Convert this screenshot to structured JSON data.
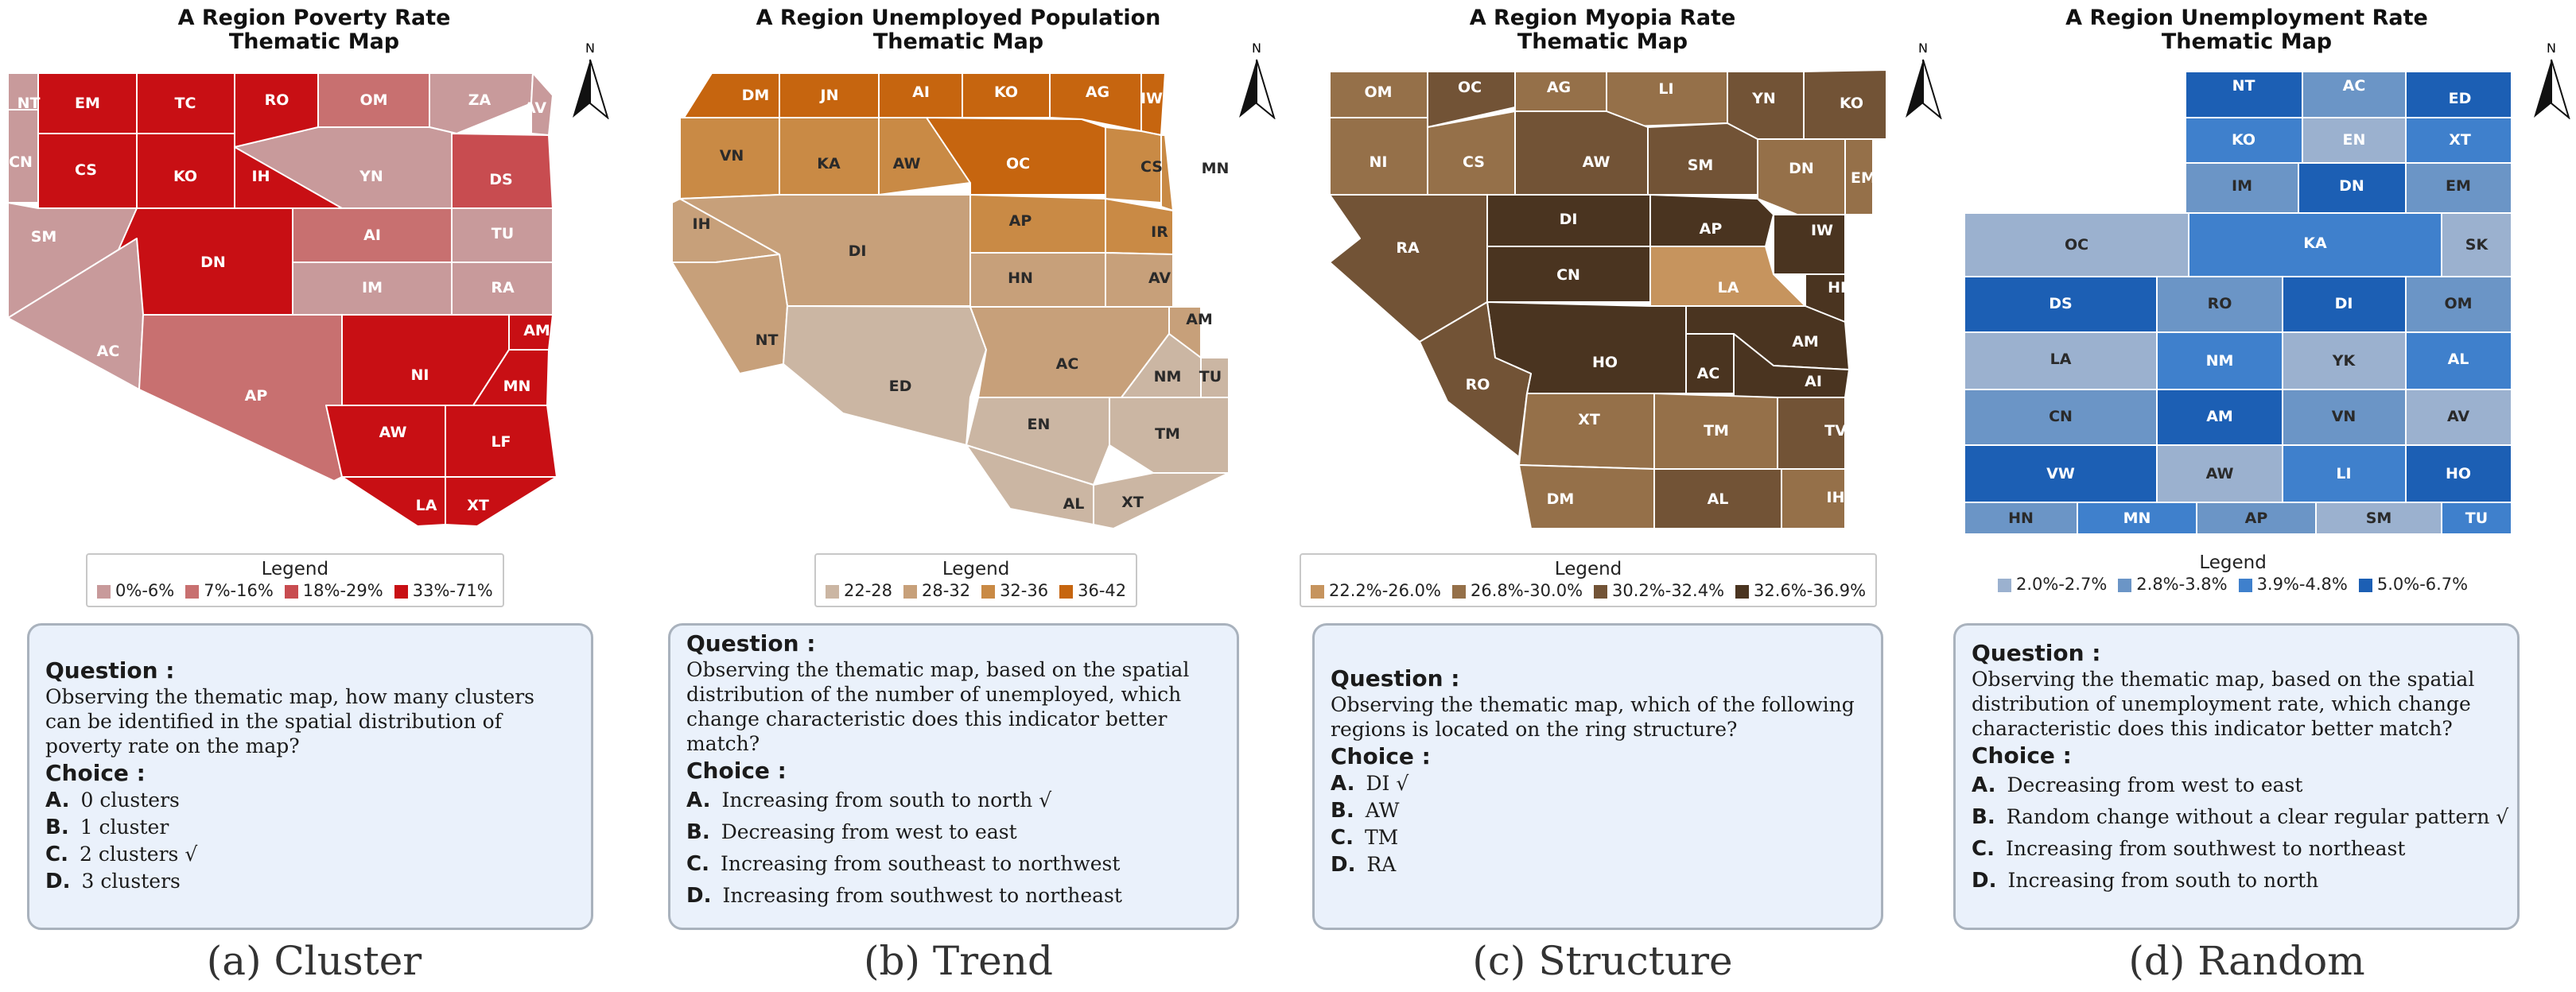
{
  "panels": [
    {
      "title_lines": [
        "A Region Poverty Rate",
        "Thematic Map"
      ],
      "legend": {
        "title": "Legend",
        "items": [
          {
            "label": "0%-6%",
            "color": "#c89a9b"
          },
          {
            "label": "7%-16%",
            "color": "#c87070"
          },
          {
            "label": "18%-29%",
            "color": "#c84c50"
          },
          {
            "label": "33%-71%",
            "color": "#c80f14"
          }
        ]
      },
      "question": {
        "heading": "Question :",
        "text": "Observing the thematic map, how many clusters can be identified in the spatial distribution of poverty rate on the map?",
        "choice_heading": "Choice :",
        "options": [
          {
            "key": "A.",
            "text": "0 clusters"
          },
          {
            "key": "B.",
            "text": "1 cluster"
          },
          {
            "key": "C.",
            "text": "2 clusters  √"
          },
          {
            "key": "D.",
            "text": "3 clusters"
          }
        ]
      },
      "caption": "(a) Cluster",
      "north": "N"
    },
    {
      "title_lines": [
        "A Region Unemployed Population",
        "Thematic Map"
      ],
      "legend": {
        "title": "Legend",
        "items": [
          {
            "label": "22-28",
            "color": "#cbb6a3"
          },
          {
            "label": "28-32",
            "color": "#c7a07a"
          },
          {
            "label": "32-36",
            "color": "#c98a45"
          },
          {
            "label": "36-42",
            "color": "#c6650f"
          }
        ]
      },
      "question": {
        "heading": "Question :",
        "text": "Observing the thematic map, based on the spatial distribution of the number of unemployed, which change characteristic does this indicator better match?",
        "choice_heading": "Choice :",
        "options": [
          {
            "key": "A.",
            "text": "Increasing from south to north  √"
          },
          {
            "key": "B.",
            "text": "Decreasing from west to east"
          },
          {
            "key": "C.",
            "text": "Increasing from southeast to northwest"
          },
          {
            "key": "D.",
            "text": "Increasing from southwest to northeast"
          }
        ]
      },
      "caption": "(b) Trend",
      "north": "N"
    },
    {
      "title_lines": [
        "A Region Myopia Rate",
        "Thematic Map"
      ],
      "legend": {
        "title": "Legend",
        "items": [
          {
            "label": "22.2%-26.0%",
            "color": "#c6945e"
          },
          {
            "label": "26.8%-30.0%",
            "color": "#957049"
          },
          {
            "label": "30.2%-32.4%",
            "color": "#725336"
          },
          {
            "label": "32.6%-36.9%",
            "color": "#4a3420"
          }
        ]
      },
      "question": {
        "heading": "Question :",
        "text": "Observing the thematic map, which of the following regions is located on the ring structure?",
        "choice_heading": "Choice :",
        "options": [
          {
            "key": "A.",
            "text": "DI  √"
          },
          {
            "key": "B.",
            "text": "AW"
          },
          {
            "key": "C.",
            "text": "TM"
          },
          {
            "key": "D.",
            "text": "RA"
          }
        ]
      },
      "caption": "(c) Structure",
      "north": "N"
    },
    {
      "title_lines": [
        "A Region Unemployment Rate",
        "Thematic Map"
      ],
      "legend": {
        "title": "Legend",
        "items": [
          {
            "label": "2.0%-2.7%",
            "color": "#9bb1cf"
          },
          {
            "label": "2.8%-3.8%",
            "color": "#6b95c6"
          },
          {
            "label": "3.9%-4.8%",
            "color": "#3f80cc"
          },
          {
            "label": "5.0%-6.7%",
            "color": "#1c5fb4"
          }
        ]
      },
      "question": {
        "heading": "Question :",
        "text": "Observing the thematic map, based on the spatial distribution of unemployment rate, which change characteristic does this indicator better match?",
        "choice_heading": "Choice :",
        "options": [
          {
            "key": "A.",
            "text": "Decreasing from west to east"
          },
          {
            "key": "B.",
            "text": "Random change without a clear regular pattern  √"
          },
          {
            "key": "C.",
            "text": "Increasing from southwest to northeast"
          },
          {
            "key": "D.",
            "text": "Increasing from south to north"
          }
        ]
      },
      "caption": "(d) Random",
      "north": "N"
    }
  ],
  "maps": {
    "a": {
      "regions": [
        {
          "label": "NT",
          "cls": 0
        },
        {
          "label": "EM",
          "cls": 3
        },
        {
          "label": "TC",
          "cls": 3
        },
        {
          "label": "RO",
          "cls": 3
        },
        {
          "label": "OM",
          "cls": 1
        },
        {
          "label": "ZA",
          "cls": 0
        },
        {
          "label": "AV",
          "cls": 0
        },
        {
          "label": "CN",
          "cls": 0
        },
        {
          "label": "CS",
          "cls": 3
        },
        {
          "label": "KO",
          "cls": 3
        },
        {
          "label": "IH",
          "cls": 3
        },
        {
          "label": "YN",
          "cls": 0
        },
        {
          "label": "DS",
          "cls": 2
        },
        {
          "label": "SM",
          "cls": 0
        },
        {
          "label": "DN",
          "cls": 3
        },
        {
          "label": "AI",
          "cls": 1
        },
        {
          "label": "TU",
          "cls": 0
        },
        {
          "label": "IM",
          "cls": 0
        },
        {
          "label": "RA",
          "cls": 0
        },
        {
          "label": "AC",
          "cls": 0
        },
        {
          "label": "AP",
          "cls": 1
        },
        {
          "label": "NI",
          "cls": 3
        },
        {
          "label": "AM",
          "cls": 3
        },
        {
          "label": "MN",
          "cls": 3
        },
        {
          "label": "AW",
          "cls": 3
        },
        {
          "label": "LF",
          "cls": 3
        },
        {
          "label": "LA",
          "cls": 3
        },
        {
          "label": "XT",
          "cls": 3
        }
      ]
    },
    "b": {
      "regions": [
        {
          "label": "DM",
          "cls": 3
        },
        {
          "label": "JN",
          "cls": 3
        },
        {
          "label": "AI",
          "cls": 3
        },
        {
          "label": "KO",
          "cls": 3
        },
        {
          "label": "AG",
          "cls": 3
        },
        {
          "label": "IW",
          "cls": 3
        },
        {
          "label": "VN",
          "cls": 2
        },
        {
          "label": "KA",
          "cls": 2
        },
        {
          "label": "AW",
          "cls": 2
        },
        {
          "label": "OC",
          "cls": 3
        },
        {
          "label": "CS",
          "cls": 2
        },
        {
          "label": "MN",
          "cls": 2
        },
        {
          "label": "IH",
          "cls": 1
        },
        {
          "label": "DI",
          "cls": 1
        },
        {
          "label": "AP",
          "cls": 2
        },
        {
          "label": "IR",
          "cls": 2
        },
        {
          "label": "HN",
          "cls": 1
        },
        {
          "label": "AV",
          "cls": 1
        },
        {
          "label": "NT",
          "cls": 1
        },
        {
          "label": "ED",
          "cls": 0
        },
        {
          "label": "AC",
          "cls": 1
        },
        {
          "label": "AM",
          "cls": 1
        },
        {
          "label": "NM",
          "cls": 0
        },
        {
          "label": "TU",
          "cls": 0
        },
        {
          "label": "EN",
          "cls": 0
        },
        {
          "label": "TM",
          "cls": 0
        },
        {
          "label": "AL",
          "cls": 0
        },
        {
          "label": "XT",
          "cls": 0
        }
      ]
    },
    "c": {
      "regions": [
        {
          "label": "OM",
          "cls": 1
        },
        {
          "label": "OC",
          "cls": 2
        },
        {
          "label": "AG",
          "cls": 1
        },
        {
          "label": "LI",
          "cls": 1
        },
        {
          "label": "YN",
          "cls": 2
        },
        {
          "label": "KO",
          "cls": 2
        },
        {
          "label": "NI",
          "cls": 1
        },
        {
          "label": "CS",
          "cls": 1
        },
        {
          "label": "AW",
          "cls": 2
        },
        {
          "label": "SM",
          "cls": 2
        },
        {
          "label": "DN",
          "cls": 1
        },
        {
          "label": "EM",
          "cls": 1
        },
        {
          "label": "RA",
          "cls": 2
        },
        {
          "label": "DI",
          "cls": 3
        },
        {
          "label": "AP",
          "cls": 3
        },
        {
          "label": "IW",
          "cls": 3
        },
        {
          "label": "CN",
          "cls": 3
        },
        {
          "label": "LA",
          "cls": 0
        },
        {
          "label": "HN",
          "cls": 3
        },
        {
          "label": "HO",
          "cls": 3
        },
        {
          "label": "AM",
          "cls": 3
        },
        {
          "label": "RO",
          "cls": 2
        },
        {
          "label": "AC",
          "cls": 3
        },
        {
          "label": "AI",
          "cls": 3
        },
        {
          "label": "XT",
          "cls": 1
        },
        {
          "label": "TM",
          "cls": 1
        },
        {
          "label": "TV",
          "cls": 2
        },
        {
          "label": "DM",
          "cls": 1
        },
        {
          "label": "AL",
          "cls": 2
        },
        {
          "label": "IH",
          "cls": 1
        }
      ]
    },
    "d": {
      "regions": [
        {
          "label": "NT",
          "cls": 3
        },
        {
          "label": "AC",
          "cls": 1
        },
        {
          "label": "ED",
          "cls": 3
        },
        {
          "label": "KO",
          "cls": 2
        },
        {
          "label": "EN",
          "cls": 0
        },
        {
          "label": "XT",
          "cls": 2
        },
        {
          "label": "IM",
          "cls": 1
        },
        {
          "label": "DN",
          "cls": 3
        },
        {
          "label": "EM",
          "cls": 1
        },
        {
          "label": "OC",
          "cls": 0
        },
        {
          "label": "KA",
          "cls": 2
        },
        {
          "label": "SK",
          "cls": 0
        },
        {
          "label": "DS",
          "cls": 3
        },
        {
          "label": "RO",
          "cls": 1
        },
        {
          "label": "DI",
          "cls": 3
        },
        {
          "label": "OM",
          "cls": 1
        },
        {
          "label": "LA",
          "cls": 0
        },
        {
          "label": "NM",
          "cls": 2
        },
        {
          "label": "YK",
          "cls": 0
        },
        {
          "label": "AL",
          "cls": 2
        },
        {
          "label": "CN",
          "cls": 1
        },
        {
          "label": "AM",
          "cls": 3
        },
        {
          "label": "VN",
          "cls": 1
        },
        {
          "label": "AV",
          "cls": 0
        },
        {
          "label": "VW",
          "cls": 3
        },
        {
          "label": "AW",
          "cls": 0
        },
        {
          "label": "LI",
          "cls": 2
        },
        {
          "label": "HO",
          "cls": 3
        },
        {
          "label": "HN",
          "cls": 1
        },
        {
          "label": "MN",
          "cls": 2
        },
        {
          "label": "AP",
          "cls": 1
        },
        {
          "label": "SM",
          "cls": 0
        },
        {
          "label": "TU",
          "cls": 2
        }
      ]
    }
  }
}
